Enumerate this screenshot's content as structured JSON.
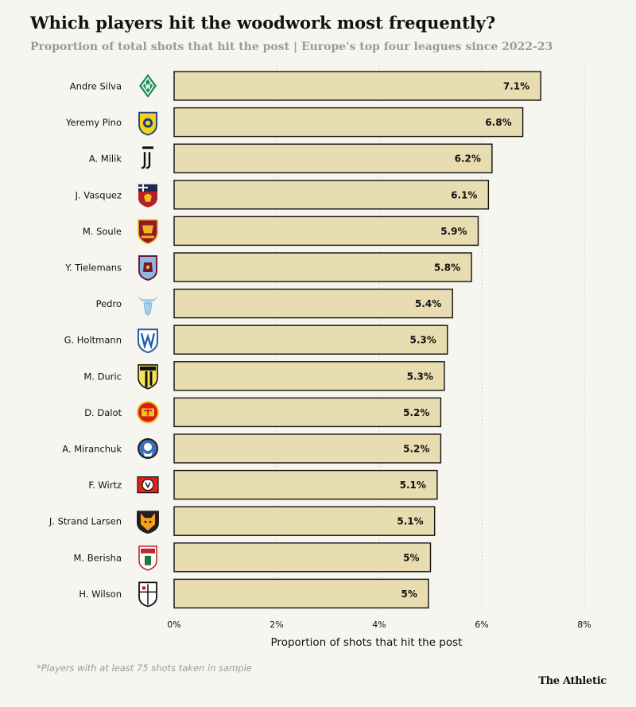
{
  "header": {
    "title": "Which players hit the woodwork most frequently?",
    "subtitle": "Proportion of total shots that hit the post | Europe's top four leagues since 2022-23"
  },
  "footer": {
    "footnote": "*Players with at least 75 shots taken in sample",
    "brand": "The Athletic"
  },
  "colors": {
    "background": "#f6f5ef",
    "bar_fill": "#e8dcb1",
    "bar_stroke": "#111111",
    "grid": "#c9c9c2"
  },
  "chart_data": {
    "type": "bar",
    "orientation": "horizontal",
    "title": "Which players hit the woodwork most frequently?",
    "subtitle": "Proportion of total shots that hit the post | Europe's top four leagues since 2022-23",
    "xlabel": "Proportion of shots that hit the post",
    "ylabel": "",
    "xlim": [
      0,
      8
    ],
    "xticks": [
      0,
      2,
      4,
      6,
      8
    ],
    "xtick_labels": [
      "0%",
      "2%",
      "4%",
      "6%",
      "8%"
    ],
    "grid": "vertical dotted",
    "categories": [
      "Andre Silva",
      "Yeremy Pino",
      "A. Milik",
      "J. Vasquez",
      "M. Soule",
      "Y. Tielemans",
      "Pedro",
      "G. Holtmann",
      "M. Duric",
      "D. Dalot",
      "A. Miranchuk",
      "F. Wirtz",
      "J. Strand Larsen",
      "M. Berisha",
      "H. Wilson"
    ],
    "values": [
      7.15,
      6.8,
      6.2,
      6.13,
      5.93,
      5.8,
      5.43,
      5.33,
      5.27,
      5.2,
      5.2,
      5.13,
      5.08,
      5.0,
      4.96
    ],
    "data_labels": [
      "7.1%",
      "6.8%",
      "6.2%",
      "6.1%",
      "5.9%",
      "5.8%",
      "5.4%",
      "5.3%",
      "5.3%",
      "5.2%",
      "5.2%",
      "5.1%",
      "5.1%",
      "5%",
      "5%"
    ],
    "club_badges": [
      "werder-bremen-badge",
      "villarreal-badge",
      "juventus-badge",
      "genoa-badge",
      "roma-badge",
      "aston-villa-badge",
      "lazio-badge",
      "bochum-badge",
      "parma-badge",
      "manchester-united-badge",
      "atalanta-badge",
      "leverkusen-badge",
      "wolves-badge",
      "augsburg-badge",
      "fulham-badge"
    ]
  }
}
